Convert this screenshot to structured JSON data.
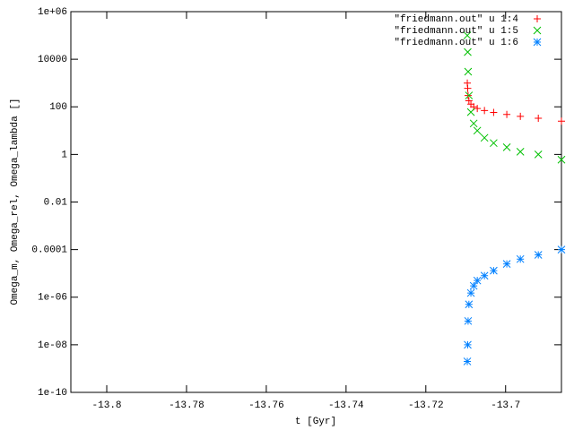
{
  "chart_data": {
    "type": "scatter",
    "xlabel": "t [Gyr]",
    "ylabel": "Omega_m, Omega_rel, Omega_lambda []",
    "ylog": true,
    "legend": "top-right",
    "xlim": [
      -13.809,
      -13.686
    ],
    "xticks": [
      -13.8,
      -13.78,
      -13.76,
      -13.74,
      -13.72,
      -13.7
    ],
    "ylim": [
      1e-10,
      1000000
    ],
    "yticks": [
      {
        "value": 1e-10,
        "label": "1e-10"
      },
      {
        "value": 1e-08,
        "label": "1e-08"
      },
      {
        "value": 1e-06,
        "label": "1e-06"
      },
      0.0001,
      0.01,
      1,
      100,
      10000,
      {
        "value": 1000000,
        "label": "1e+06"
      }
    ],
    "x": [
      -13.7096,
      -13.7095,
      -13.7094,
      -13.7092,
      -13.7087,
      -13.708,
      -13.7071,
      -13.7053,
      -13.703,
      -13.6997,
      -13.6963,
      -13.6918,
      -13.686
    ],
    "series": [
      {
        "name": "\"friedmann.out\" u 1:4",
        "color": "#ff0000",
        "marker": "+",
        "values": [
          1000,
          600,
          300,
          180,
          130,
          100,
          85,
          70,
          58,
          48,
          40,
          33,
          25
        ]
      },
      {
        "name": "\"friedmann.out\" u 1:5",
        "color": "#00c000",
        "marker": "x",
        "values": [
          100000,
          20000,
          3000,
          300,
          60,
          20,
          10,
          5,
          3,
          2,
          1.3,
          1,
          0.6
        ]
      },
      {
        "name": "\"friedmann.out\" u 1:6",
        "color": "#0080ff",
        "marker": "*",
        "values": [
          2e-09,
          1e-08,
          1e-07,
          5e-07,
          1.5e-06,
          3e-06,
          5e-06,
          8e-06,
          1.3e-05,
          2.5e-05,
          4e-05,
          6e-05,
          0.0001
        ]
      }
    ]
  }
}
